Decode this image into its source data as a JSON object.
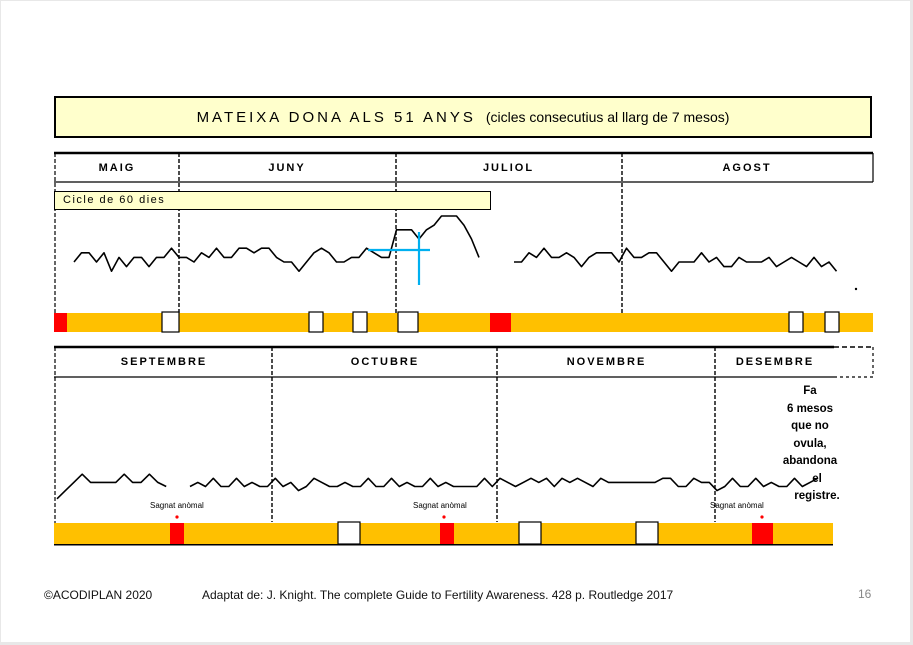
{
  "title": {
    "main": "MATEIXA DONA ALS  51 ANYS",
    "sub": "(cicles consecutius al llarg de 7 mesos)"
  },
  "cycle_label": "Cicle de 60 dies",
  "notes": {
    "abnormal_bleed": "Sagnat anòmal",
    "abandon_lines": [
      "Fa",
      "6 mesos",
      "que no",
      "ovula,",
      "abandona",
      "el registre."
    ]
  },
  "footer": {
    "copyright": "©ACODIPLAN 2020",
    "source": "Adaptat de: J. Knight. The complete Guide to Fertility Awareness. 428 p. Routledge 2017",
    "page": "16"
  },
  "colors": {
    "bleeding": "#ff0000",
    "infertile_band": "#ffc000",
    "fertile_mucus": "#ffffff",
    "temperature_line": "#000000",
    "coverline": "#00b0f0",
    "title_bg": "#ffffcc"
  },
  "chart_data": [
    {
      "type": "line",
      "panel": "top",
      "months": [
        "MAIG",
        "JUNY",
        "JULIOL",
        "AGOST"
      ],
      "description_series": "temperature",
      "series": [
        {
          "segment": 1,
          "values": [
            5,
            7,
            7,
            5,
            7,
            3,
            6,
            4,
            6,
            6,
            4,
            6,
            6,
            8,
            6,
            6,
            5,
            7,
            6,
            8,
            6,
            6,
            8,
            8,
            7,
            8,
            8,
            6,
            5,
            5,
            3,
            5,
            7,
            8,
            7,
            5,
            5,
            6,
            6,
            8,
            7,
            6,
            6,
            12,
            12,
            12,
            10,
            12,
            13,
            15,
            15,
            15,
            13,
            10,
            6
          ]
        },
        {
          "segment": 2,
          "values": [
            5,
            5,
            7,
            6,
            8,
            6,
            6,
            7,
            6,
            4,
            6,
            7,
            7,
            7,
            5,
            8,
            6,
            6,
            7,
            7,
            5,
            3,
            5,
            5,
            5,
            7,
            5,
            6,
            4,
            4,
            6,
            5,
            5,
            5,
            6,
            4,
            5,
            6,
            5,
            4,
            6,
            4,
            5,
            3
          ]
        }
      ],
      "bleeding_markers": 2,
      "white_markers": 6
    },
    {
      "type": "line",
      "panel": "bottom",
      "months": [
        "SEPTEMBRE",
        "OCTUBRE",
        "NOVEMBRE",
        "DESEMBRE"
      ],
      "series": [
        {
          "segment": 1,
          "values": [
            2,
            4,
            6,
            8,
            6,
            6,
            6,
            6,
            8,
            6,
            6,
            8,
            6,
            5
          ]
        },
        {
          "segment": 2,
          "values": [
            5,
            6,
            5,
            7,
            5,
            5,
            7,
            5,
            6,
            5,
            5,
            7,
            5,
            6,
            4,
            5,
            7,
            6,
            5,
            5,
            6,
            5,
            5,
            7,
            5,
            5,
            7,
            5,
            6,
            5,
            5,
            7,
            5,
            6,
            5,
            5,
            5,
            5,
            7,
            5,
            7,
            6,
            5,
            6,
            7,
            6,
            7,
            5,
            7,
            6,
            7,
            6,
            5,
            7,
            6,
            6,
            6,
            6,
            6,
            6,
            6,
            7,
            7,
            5,
            5,
            7,
            6,
            6,
            4,
            5,
            7,
            5,
            5,
            7,
            5,
            6,
            5,
            5,
            7,
            5,
            6,
            7
          ]
        }
      ],
      "bleeding_markers": 3,
      "white_markers": 3
    }
  ]
}
